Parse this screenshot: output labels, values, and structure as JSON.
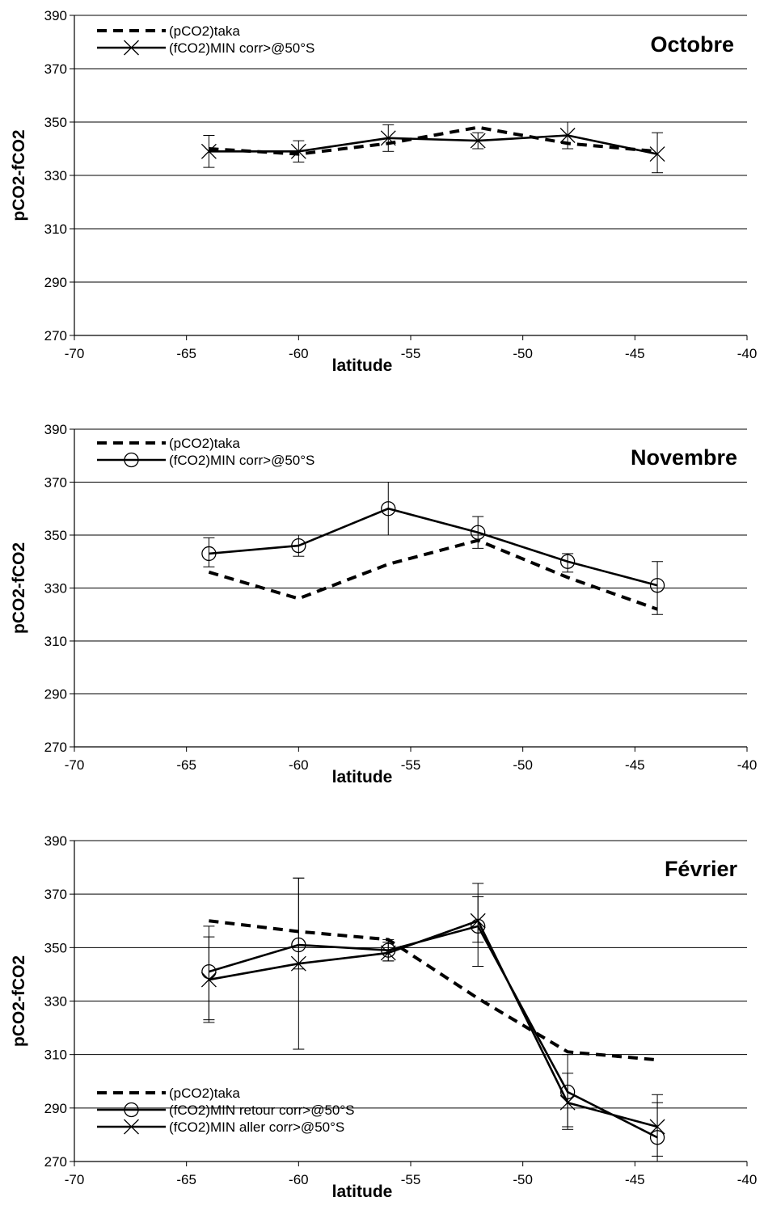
{
  "chart_data": [
    {
      "type": "line",
      "title": "Octobre",
      "xlabel": "latitude",
      "ylabel": "pCO2-fCO2",
      "xlim": [
        -70,
        -40
      ],
      "ylim": [
        270,
        390
      ],
      "xticks": [
        "-70",
        "-65",
        "-60",
        "-55",
        "-50",
        "-45",
        "-40"
      ],
      "yticks": [
        "270",
        "290",
        "310",
        "330",
        "350",
        "370",
        "390"
      ],
      "grid": "horizontal",
      "legend_position": "top-left",
      "series": [
        {
          "name": "(pCO2)taka",
          "style": "dashed",
          "x": [
            -64,
            -60,
            -56,
            -52,
            -48,
            -44
          ],
          "y": [
            340,
            338,
            342,
            348,
            342,
            339
          ]
        },
        {
          "name": "(fCO2)MIN corr>@50°S",
          "style": "solid",
          "marker": "x",
          "x": [
            -64,
            -60,
            -56,
            -52,
            -48,
            -44
          ],
          "y": [
            339,
            339,
            344,
            343,
            345,
            338
          ],
          "err_low": [
            333,
            335,
            339,
            340,
            340,
            331
          ],
          "err_high": [
            345,
            343,
            349,
            346,
            350,
            346
          ]
        }
      ]
    },
    {
      "type": "line",
      "title": "Novembre",
      "xlabel": "latitude",
      "ylabel": "pCO2-fCO2",
      "xlim": [
        -70,
        -40
      ],
      "ylim": [
        270,
        390
      ],
      "xticks": [
        "-70",
        "-65",
        "-60",
        "-55",
        "-50",
        "-45",
        "-40"
      ],
      "yticks": [
        "270",
        "290",
        "310",
        "330",
        "350",
        "370",
        "390"
      ],
      "grid": "horizontal",
      "legend_position": "top-left",
      "series": [
        {
          "name": "(pCO2)taka",
          "style": "dashed",
          "x": [
            -64,
            -60,
            -56,
            -52,
            -48,
            -44
          ],
          "y": [
            336,
            326,
            339,
            348,
            334,
            322
          ]
        },
        {
          "name": "(fCO2)MIN corr>@50°S",
          "style": "solid",
          "marker": "circle",
          "x": [
            -64,
            -60,
            -56,
            -52,
            -48,
            -44
          ],
          "y": [
            343,
            346,
            360,
            351,
            340,
            331
          ],
          "err_low": [
            338,
            342,
            350,
            345,
            336,
            320
          ],
          "err_high": [
            349,
            350,
            370,
            357,
            343,
            340
          ]
        }
      ]
    },
    {
      "type": "line",
      "title": "Février",
      "xlabel": "latitude",
      "ylabel": "pCO2-fCO2",
      "xlim": [
        -70,
        -40
      ],
      "ylim": [
        270,
        390
      ],
      "xticks": [
        "-70",
        "-65",
        "-60",
        "-55",
        "-50",
        "-45",
        "-40"
      ],
      "yticks": [
        "270",
        "290",
        "310",
        "330",
        "350",
        "370",
        "390"
      ],
      "grid": "horizontal",
      "legend_position": "bottom-left",
      "series": [
        {
          "name": "(pCO2)taka",
          "style": "dashed",
          "x": [
            -64,
            -60,
            -56,
            -52,
            -48,
            -44
          ],
          "y": [
            360,
            356,
            353,
            331,
            311,
            308
          ]
        },
        {
          "name": "(fCO2)MIN retour corr>@50°S",
          "style": "solid",
          "marker": "circle",
          "x": [
            -64,
            -60,
            -56,
            -52,
            -48,
            -44
          ],
          "y": [
            341,
            351,
            349,
            358,
            296,
            279
          ],
          "err_low": [
            322,
            342,
            345,
            343,
            283,
            272
          ],
          "err_high": [
            358,
            376,
            353,
            374,
            310,
            292
          ]
        },
        {
          "name": "(fCO2)MIN aller corr>@50°S",
          "style": "solid",
          "marker": "x",
          "x": [
            -64,
            -60,
            -56,
            -52,
            -48,
            -44
          ],
          "y": [
            338,
            344,
            348,
            360,
            292,
            283
          ],
          "err_low": [
            323,
            312,
            345,
            352,
            282,
            270
          ],
          "err_high": [
            354,
            376,
            352,
            369,
            303,
            295
          ]
        }
      ]
    }
  ]
}
